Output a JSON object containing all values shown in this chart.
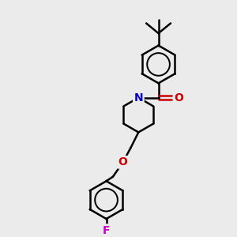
{
  "background_color": "#ebebeb",
  "bond_color": "#000000",
  "bond_width": 1.8,
  "figsize": [
    3.0,
    3.0
  ],
  "dpi": 100,
  "atom_colors": {
    "N": "#0000cc",
    "O": "#cc0000",
    "F": "#cc00cc",
    "C": "#000000"
  },
  "font_size": 9,
  "xlim": [
    0,
    10
  ],
  "ylim": [
    0,
    10
  ]
}
